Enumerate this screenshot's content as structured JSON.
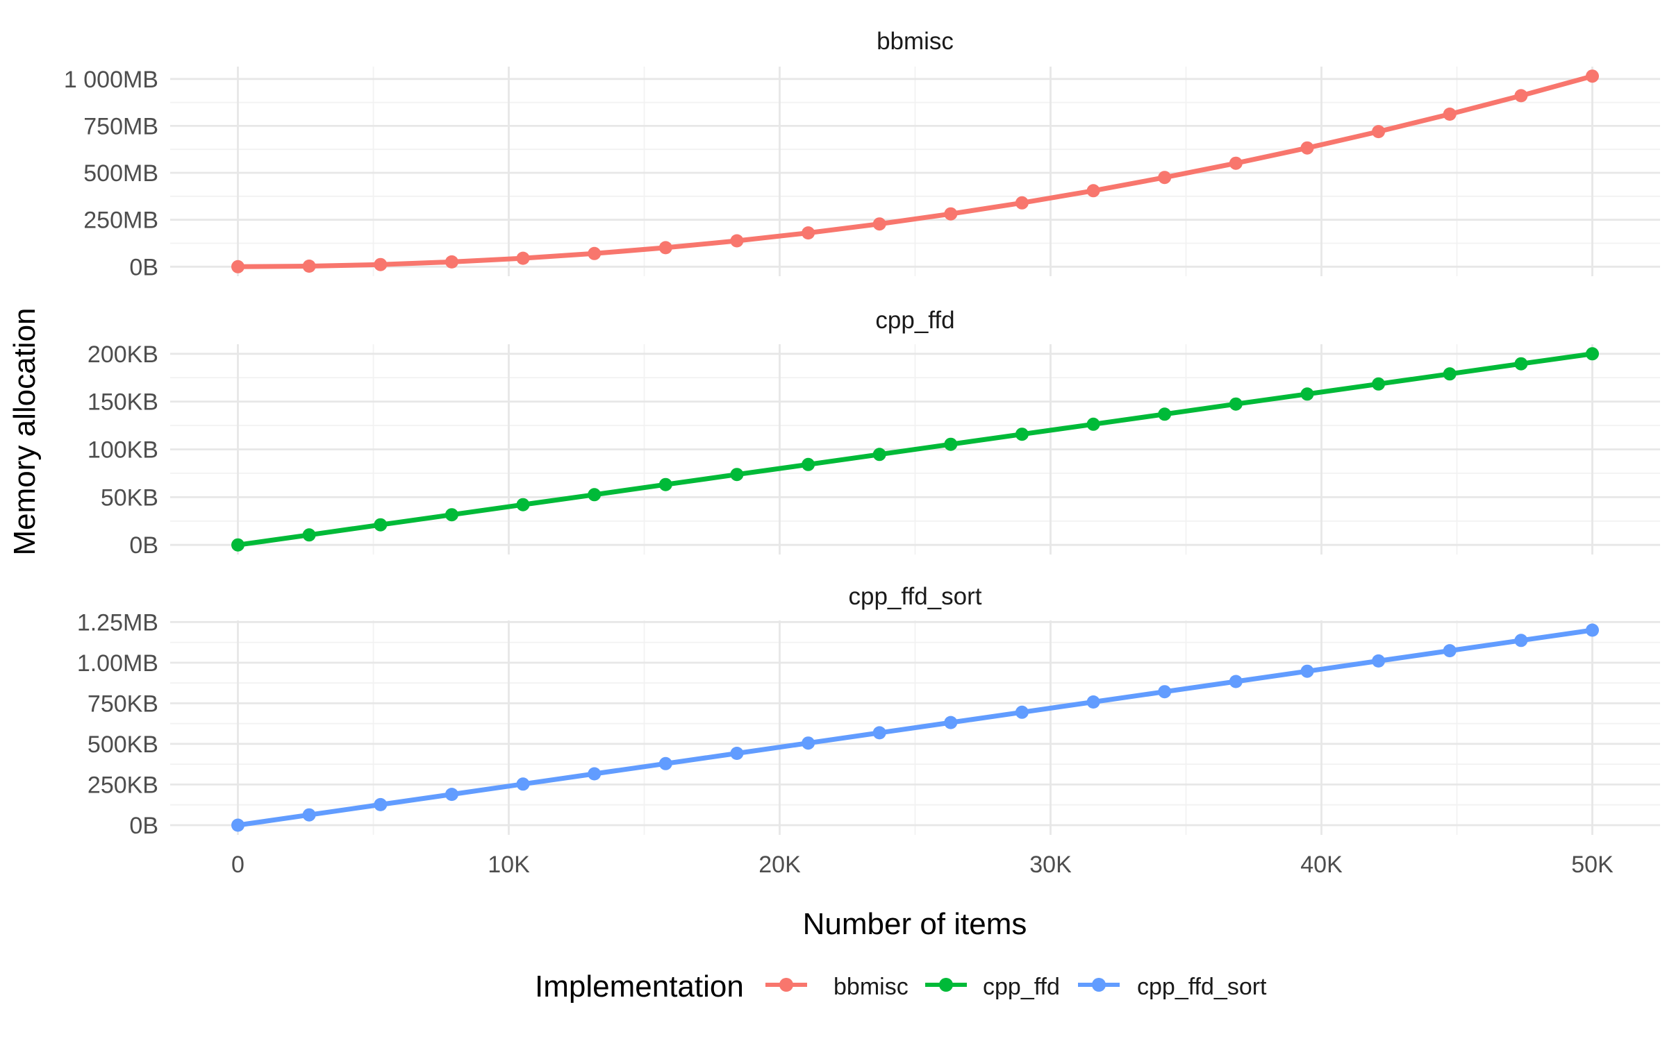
{
  "chart_data": {
    "type": "line",
    "faceted": true,
    "facet_titles": [
      "bbmisc",
      "cpp_ffd",
      "cpp_ffd_sort"
    ],
    "xlabel": "Number of items",
    "ylabel": "Memory allocation",
    "legend_title": "Implementation",
    "legend_position": "bottom",
    "grid": "white background, light grey major and minor gridlines, no axis lines, no tick marks",
    "x": [
      0,
      2632,
      5263,
      7895,
      10526,
      13158,
      15789,
      18421,
      21053,
      23684,
      26316,
      28947,
      31579,
      34211,
      36842,
      39474,
      42105,
      44737,
      47368,
      50000
    ],
    "xlim": [
      -2500,
      52500
    ],
    "x_major_ticks": [
      {
        "value": 0,
        "label": "0"
      },
      {
        "value": 10000,
        "label": "10K"
      },
      {
        "value": 20000,
        "label": "20K"
      },
      {
        "value": 30000,
        "label": "30K"
      },
      {
        "value": 40000,
        "label": "40K"
      },
      {
        "value": 50000,
        "label": "50K"
      }
    ],
    "x_minor_ticks": [
      5000,
      15000,
      25000,
      35000,
      45000
    ],
    "facets": [
      {
        "title": "bbmisc",
        "series_name": "bbmisc",
        "color": "#F8766D",
        "unit": "MB",
        "values": [
          0,
          2.8,
          11.2,
          25.3,
          45.0,
          70.3,
          101.2,
          137.8,
          179.9,
          227.7,
          281.2,
          340.2,
          404.9,
          475.2,
          551.1,
          632.6,
          719.8,
          812.6,
          911.0,
          1015.0
        ],
        "ylim": [
          -50.75,
          1065.75
        ],
        "y_major_ticks": [
          {
            "value": 0,
            "label": "0B"
          },
          {
            "value": 250,
            "label": "250MB"
          },
          {
            "value": 500,
            "label": "500MB"
          },
          {
            "value": 750,
            "label": "750MB"
          },
          {
            "value": 1000,
            "label": "1 000MB"
          }
        ],
        "y_minor_ticks": [
          125,
          375,
          625,
          875
        ]
      },
      {
        "title": "cpp_ffd",
        "series_name": "cpp_ffd",
        "color": "#00BA38",
        "unit": "KB",
        "values": [
          0,
          10.5,
          21.1,
          31.6,
          42.1,
          52.6,
          63.2,
          73.7,
          84.2,
          94.7,
          105.3,
          115.8,
          126.3,
          136.8,
          147.4,
          157.9,
          168.4,
          178.9,
          189.5,
          200.0
        ],
        "ylim": [
          -10,
          210
        ],
        "y_major_ticks": [
          {
            "value": 0,
            "label": "0B"
          },
          {
            "value": 50,
            "label": "50KB"
          },
          {
            "value": 100,
            "label": "100KB"
          },
          {
            "value": 150,
            "label": "150KB"
          },
          {
            "value": 200,
            "label": "200KB"
          }
        ],
        "y_minor_ticks": [
          25,
          75,
          125,
          175
        ]
      },
      {
        "title": "cpp_ffd_sort",
        "series_name": "cpp_ffd_sort",
        "color": "#619CFF",
        "unit": "KB",
        "values": [
          0,
          63.2,
          126.3,
          189.5,
          252.6,
          315.8,
          378.9,
          442.1,
          505.3,
          568.4,
          631.6,
          694.7,
          757.9,
          821.1,
          884.2,
          947.4,
          1010.5,
          1073.7,
          1136.8,
          1200.0
        ],
        "ylim": [
          -60,
          1260
        ],
        "y_major_ticks": [
          {
            "value": 0,
            "label": "0B"
          },
          {
            "value": 250,
            "label": "250KB"
          },
          {
            "value": 500,
            "label": "500KB"
          },
          {
            "value": 750,
            "label": "750KB"
          },
          {
            "value": 1000,
            "label": "1.00MB"
          },
          {
            "value": 1250,
            "label": "1.25MB"
          }
        ],
        "y_minor_ticks": [
          125,
          375,
          625,
          875,
          1125
        ]
      }
    ],
    "legend": [
      {
        "label": "bbmisc",
        "color": "#F8766D"
      },
      {
        "label": "cpp_ffd",
        "color": "#00BA38"
      },
      {
        "label": "cpp_ffd_sort",
        "color": "#619CFF"
      }
    ]
  },
  "colors": {
    "background": "#FFFFFF",
    "grid_major": "#E7E7E7",
    "grid_minor": "#F2F2F2",
    "tick_label": "#4D4D4D",
    "panel_title": "#1A1A1A",
    "axis_title": "#000000",
    "series_red": "#F8766D",
    "series_green": "#00BA38",
    "series_blue": "#619CFF"
  }
}
